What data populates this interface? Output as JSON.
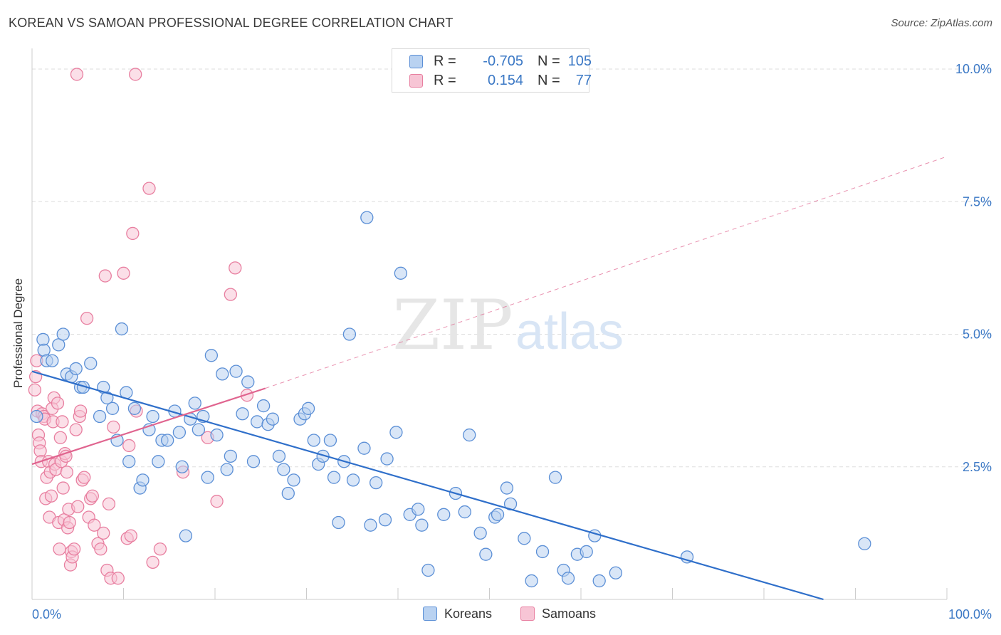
{
  "title": "KOREAN VS SAMOAN PROFESSIONAL DEGREE CORRELATION CHART",
  "source": "Source: ZipAtlas.com",
  "watermark": {
    "zip": "ZIP",
    "atlas": "atlas"
  },
  "colors": {
    "blue": "#5b8fd6",
    "blue_fill": "#b9d2f1",
    "blue_line": "#2f6fca",
    "pink": "#e87fa0",
    "pink_fill": "#f7c5d5",
    "pink_line": "#e0648f",
    "tick_text": "#3b78c5",
    "grid": "#dddddd"
  },
  "legend": {
    "rows": [
      {
        "r_label": "R =",
        "r_value": "-0.705",
        "n_label": "N =",
        "n_value": "105",
        "color": "blue"
      },
      {
        "r_label": "R =",
        "r_value": "0.154",
        "n_label": "N =",
        "n_value": "77",
        "color": "pink"
      }
    ],
    "bottom": [
      {
        "label": "Koreans",
        "color": "blue"
      },
      {
        "label": "Samoans",
        "color": "pink"
      }
    ]
  },
  "chart_data": {
    "type": "scatter",
    "title": "KOREAN VS SAMOAN PROFESSIONAL DEGREE CORRELATION CHART",
    "xlabel": "",
    "ylabel": "Professional Degree",
    "x_unit": "%",
    "y_unit": "%",
    "xlim": [
      0,
      100
    ],
    "ylim": [
      0,
      10.0
    ],
    "x_ticks": [
      {
        "value": 0,
        "label": "0.0%"
      },
      {
        "value": 100,
        "label": "100.0%"
      }
    ],
    "y_ticks": [
      {
        "value": 2.5,
        "label": "2.5%"
      },
      {
        "value": 5.0,
        "label": "5.0%"
      },
      {
        "value": 7.5,
        "label": "7.5%"
      },
      {
        "value": 10.0,
        "label": "10.0%"
      }
    ],
    "grid": true,
    "legend_position": "top-center",
    "series": [
      {
        "name": "Koreans",
        "color": "blue",
        "trend": {
          "x1": 0,
          "y1": 4.3,
          "x2": 86.5,
          "y2": 0.0,
          "dashed_extension": false
        },
        "points": [
          [
            0.5,
            3.45
          ],
          [
            1.2,
            4.9
          ],
          [
            1.3,
            4.7
          ],
          [
            1.6,
            4.5
          ],
          [
            2.2,
            4.5
          ],
          [
            2.9,
            4.8
          ],
          [
            3.4,
            5.0
          ],
          [
            3.8,
            4.25
          ],
          [
            4.3,
            4.2
          ],
          [
            4.8,
            4.35
          ],
          [
            5.3,
            4.0
          ],
          [
            5.6,
            4.0
          ],
          [
            6.4,
            4.45
          ],
          [
            7.4,
            3.45
          ],
          [
            7.8,
            4.0
          ],
          [
            8.2,
            3.8
          ],
          [
            8.8,
            3.6
          ],
          [
            9.3,
            3.0
          ],
          [
            9.8,
            5.1
          ],
          [
            10.3,
            3.9
          ],
          [
            10.6,
            2.6
          ],
          [
            11.2,
            3.6
          ],
          [
            11.8,
            2.1
          ],
          [
            12.1,
            2.25
          ],
          [
            12.8,
            3.2
          ],
          [
            13.2,
            3.45
          ],
          [
            13.8,
            2.6
          ],
          [
            14.2,
            3.0
          ],
          [
            14.8,
            3.0
          ],
          [
            15.6,
            3.55
          ],
          [
            16.1,
            3.15
          ],
          [
            16.4,
            2.5
          ],
          [
            16.8,
            1.2
          ],
          [
            17.3,
            3.4
          ],
          [
            17.8,
            3.7
          ],
          [
            18.2,
            3.2
          ],
          [
            18.7,
            3.45
          ],
          [
            19.2,
            2.3
          ],
          [
            19.6,
            4.6
          ],
          [
            20.2,
            3.1
          ],
          [
            20.8,
            4.25
          ],
          [
            21.3,
            2.45
          ],
          [
            21.7,
            2.7
          ],
          [
            22.3,
            4.3
          ],
          [
            23.0,
            3.5
          ],
          [
            23.6,
            4.1
          ],
          [
            24.2,
            2.6
          ],
          [
            24.6,
            3.35
          ],
          [
            25.3,
            3.65
          ],
          [
            25.8,
            3.3
          ],
          [
            26.3,
            3.4
          ],
          [
            27.0,
            2.7
          ],
          [
            27.5,
            2.45
          ],
          [
            28.0,
            2.0
          ],
          [
            28.6,
            2.25
          ],
          [
            29.3,
            3.4
          ],
          [
            29.8,
            3.5
          ],
          [
            30.2,
            3.6
          ],
          [
            30.8,
            3.0
          ],
          [
            31.3,
            2.55
          ],
          [
            31.8,
            2.7
          ],
          [
            32.6,
            3.0
          ],
          [
            33.0,
            2.3
          ],
          [
            33.5,
            1.45
          ],
          [
            34.1,
            2.6
          ],
          [
            34.7,
            5.0
          ],
          [
            35.1,
            2.25
          ],
          [
            36.3,
            2.85
          ],
          [
            36.6,
            7.2
          ],
          [
            37.0,
            1.4
          ],
          [
            37.6,
            2.2
          ],
          [
            38.6,
            1.5
          ],
          [
            38.8,
            2.65
          ],
          [
            39.8,
            3.15
          ],
          [
            40.3,
            6.15
          ],
          [
            41.3,
            1.6
          ],
          [
            42.2,
            1.7
          ],
          [
            42.6,
            1.4
          ],
          [
            43.3,
            0.55
          ],
          [
            45.0,
            1.6
          ],
          [
            46.3,
            2.0
          ],
          [
            47.3,
            1.65
          ],
          [
            47.8,
            3.1
          ],
          [
            49.0,
            1.25
          ],
          [
            49.6,
            0.85
          ],
          [
            50.6,
            1.55
          ],
          [
            50.9,
            1.6
          ],
          [
            51.9,
            2.1
          ],
          [
            52.3,
            1.8
          ],
          [
            53.8,
            1.15
          ],
          [
            54.6,
            0.35
          ],
          [
            55.8,
            0.9
          ],
          [
            57.2,
            2.3
          ],
          [
            58.1,
            0.55
          ],
          [
            58.6,
            0.4
          ],
          [
            59.6,
            0.85
          ],
          [
            60.6,
            0.9
          ],
          [
            61.5,
            1.2
          ],
          [
            62.0,
            0.35
          ],
          [
            63.8,
            0.5
          ],
          [
            71.6,
            0.8
          ],
          [
            91.0,
            1.05
          ]
        ]
      },
      {
        "name": "Samoans",
        "color": "pink",
        "trend": {
          "x1": 0,
          "y1": 2.55,
          "x2": 25.5,
          "y2": 3.98,
          "dashed_extension": true,
          "dash_to_x": 100,
          "dash_to_y": 8.35
        },
        "points": [
          [
            0.3,
            3.95
          ],
          [
            0.4,
            4.2
          ],
          [
            0.5,
            4.5
          ],
          [
            0.6,
            3.55
          ],
          [
            0.7,
            3.1
          ],
          [
            0.8,
            2.95
          ],
          [
            0.9,
            2.8
          ],
          [
            1.0,
            2.6
          ],
          [
            1.1,
            3.5
          ],
          [
            1.3,
            3.45
          ],
          [
            1.4,
            3.4
          ],
          [
            1.5,
            1.9
          ],
          [
            1.6,
            2.3
          ],
          [
            1.8,
            2.6
          ],
          [
            1.9,
            1.55
          ],
          [
            2.0,
            2.4
          ],
          [
            2.1,
            1.95
          ],
          [
            2.2,
            3.6
          ],
          [
            2.3,
            3.35
          ],
          [
            2.4,
            3.8
          ],
          [
            2.5,
            2.55
          ],
          [
            2.6,
            2.45
          ],
          [
            2.8,
            3.7
          ],
          [
            2.9,
            1.45
          ],
          [
            3.0,
            0.95
          ],
          [
            3.1,
            3.05
          ],
          [
            3.2,
            2.6
          ],
          [
            3.3,
            3.35
          ],
          [
            3.4,
            2.1
          ],
          [
            3.5,
            1.5
          ],
          [
            3.6,
            2.75
          ],
          [
            3.7,
            2.7
          ],
          [
            3.8,
            2.4
          ],
          [
            3.9,
            1.35
          ],
          [
            4.0,
            1.7
          ],
          [
            4.1,
            1.45
          ],
          [
            4.2,
            0.65
          ],
          [
            4.3,
            0.9
          ],
          [
            4.4,
            0.8
          ],
          [
            4.6,
            0.95
          ],
          [
            4.8,
            3.2
          ],
          [
            5.0,
            1.75
          ],
          [
            5.2,
            3.45
          ],
          [
            5.3,
            3.55
          ],
          [
            5.5,
            2.25
          ],
          [
            5.7,
            2.3
          ],
          [
            6.0,
            5.3
          ],
          [
            6.2,
            1.55
          ],
          [
            6.4,
            1.9
          ],
          [
            6.6,
            1.95
          ],
          [
            6.8,
            1.4
          ],
          [
            7.2,
            1.05
          ],
          [
            7.5,
            0.95
          ],
          [
            7.8,
            1.25
          ],
          [
            8.0,
            6.1
          ],
          [
            8.2,
            0.55
          ],
          [
            8.4,
            1.8
          ],
          [
            8.6,
            0.4
          ],
          [
            8.9,
            3.25
          ],
          [
            9.4,
            0.4
          ],
          [
            10.0,
            6.15
          ],
          [
            10.4,
            1.15
          ],
          [
            10.6,
            2.9
          ],
          [
            10.8,
            1.2
          ],
          [
            11.0,
            6.9
          ],
          [
            11.4,
            3.55
          ],
          [
            12.8,
            7.75
          ],
          [
            13.2,
            0.7
          ],
          [
            14.0,
            0.95
          ],
          [
            16.5,
            2.4
          ],
          [
            19.2,
            3.05
          ],
          [
            20.2,
            1.85
          ],
          [
            21.7,
            5.75
          ],
          [
            22.2,
            6.25
          ],
          [
            4.9,
            9.9
          ],
          [
            11.3,
            9.9
          ],
          [
            23.5,
            3.85
          ]
        ]
      }
    ]
  },
  "axes": {
    "ylabel": "Professional Degree",
    "x_left_label": "0.0%",
    "x_right_label": "100.0%"
  }
}
